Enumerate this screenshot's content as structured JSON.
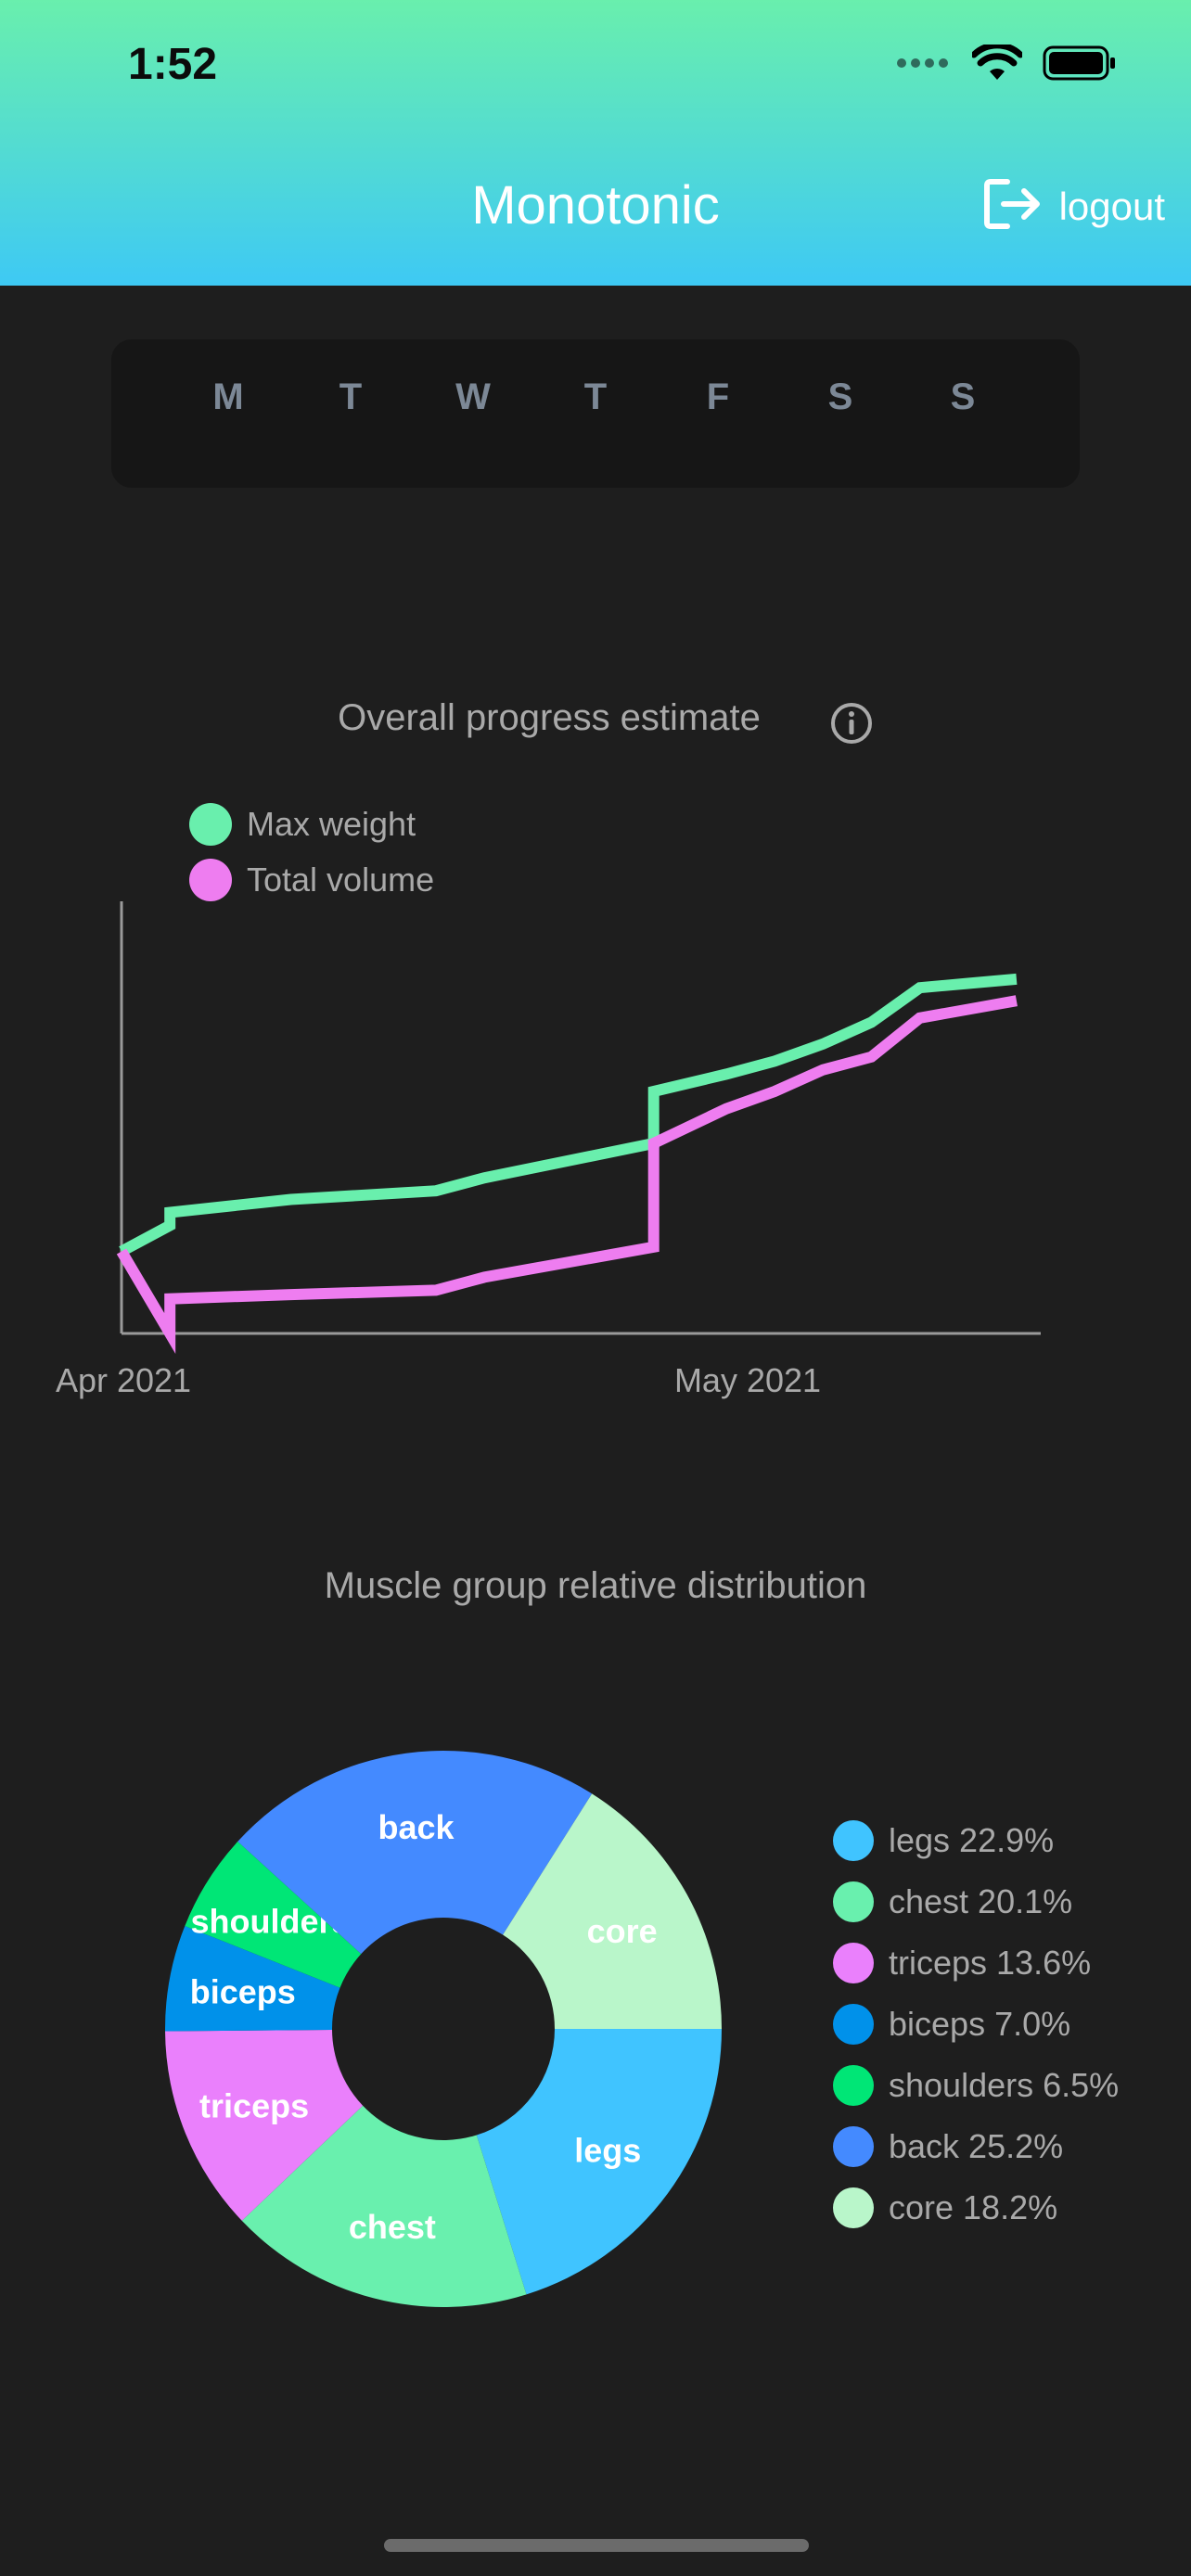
{
  "status_bar": {
    "time": "1:52"
  },
  "header": {
    "title": "Monotonic",
    "logout_label": "logout"
  },
  "week": {
    "days": [
      "M",
      "T",
      "W",
      "T",
      "F",
      "S",
      "S"
    ]
  },
  "progress_chart_title": "Overall progress estimate",
  "muscle_chart_title": "Muscle group relative distribution",
  "colors": {
    "max_weight": "#69efad",
    "total_volume": "#ee7df0",
    "legs": "#40c4ff",
    "chest": "#69f0ae",
    "triceps": "#ea80fc",
    "biceps": "#0091ea",
    "shoulders": "#00e676",
    "back": "#448aff",
    "core": "#b9f6ca"
  },
  "chart_data": [
    {
      "type": "line",
      "title": "Overall progress estimate",
      "x_ticks": [
        "Apr 2021",
        "May 2021"
      ],
      "legend_position": "top-left",
      "grid": false,
      "y_axis_labels": false,
      "x": [
        "2021-04-01",
        "2021-04-03",
        "2021-04-03",
        "2021-04-08",
        "2021-04-14",
        "2021-04-16",
        "2021-04-23",
        "2021-04-23",
        "2021-04-26",
        "2021-04-28",
        "2021-04-30",
        "2021-05-02",
        "2021-05-04",
        "2021-05-06",
        "2021-05-08"
      ],
      "series": [
        {
          "name": "Max weight",
          "values": [
            0.19,
            0.25,
            0.28,
            0.31,
            0.33,
            0.36,
            0.44,
            0.56,
            0.6,
            0.63,
            0.67,
            0.72,
            0.8,
            0.81,
            0.82
          ]
        },
        {
          "name": "Total volume",
          "values": [
            0.19,
            0.0,
            0.08,
            0.09,
            0.1,
            0.13,
            0.2,
            0.44,
            0.52,
            0.56,
            0.61,
            0.64,
            0.73,
            0.75,
            0.77
          ]
        }
      ]
    },
    {
      "type": "pie",
      "title": "Muscle group relative distribution",
      "slices": [
        {
          "label": "legs",
          "value": 22.9,
          "legend": "legs 22.9%"
        },
        {
          "label": "chest",
          "value": 20.1,
          "legend": "chest 20.1%"
        },
        {
          "label": "triceps",
          "value": 13.6,
          "legend": "triceps 13.6%"
        },
        {
          "label": "biceps",
          "value": 7.0,
          "legend": "biceps 7.0%"
        },
        {
          "label": "shoulders",
          "value": 6.5,
          "legend": "shoulders 6.5%"
        },
        {
          "label": "back",
          "value": 25.2,
          "legend": "back 25.2%"
        },
        {
          "label": "core",
          "value": 18.2,
          "legend": "core 18.2%"
        }
      ]
    }
  ]
}
